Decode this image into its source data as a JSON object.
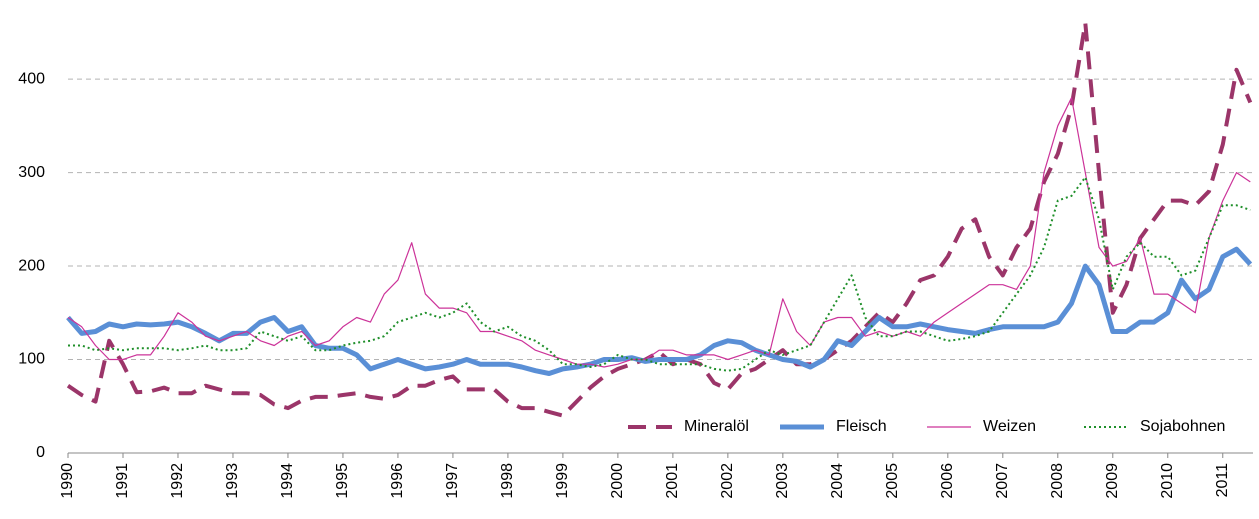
{
  "chart_data": {
    "type": "line",
    "x_start": 1990,
    "x_step": 0.25,
    "xlim": [
      1990,
      2011.55
    ],
    "xticks": [
      1990,
      1991,
      1992,
      1993,
      1994,
      1995,
      1996,
      1997,
      1998,
      1999,
      2000,
      2001,
      2002,
      2003,
      2004,
      2005,
      2006,
      2007,
      2008,
      2009,
      2010,
      2011
    ],
    "ylim": [
      0,
      475
    ],
    "yticks": [
      0,
      100,
      200,
      300,
      400
    ],
    "grid": true,
    "legend": "lower right",
    "series": [
      {
        "name": "Mineralöl",
        "color": "#9b3569",
        "style": "dashed",
        "width": 4,
        "values": [
          72,
          62,
          55,
          120,
          95,
          65,
          66,
          70,
          64,
          64,
          72,
          68,
          64,
          64,
          62,
          52,
          48,
          56,
          60,
          60,
          62,
          64,
          60,
          58,
          62,
          72,
          72,
          78,
          82,
          68,
          68,
          68,
          55,
          48,
          48,
          44,
          40,
          55,
          70,
          82,
          90,
          95,
          100,
          108,
          95,
          100,
          95,
          75,
          68,
          85,
          90,
          100,
          110,
          95,
          95,
          100,
          110,
          120,
          135,
          150,
          140,
          160,
          185,
          190,
          210,
          240,
          250,
          210,
          190,
          220,
          240,
          290,
          320,
          370,
          460,
          300,
          150,
          180,
          230,
          250,
          270,
          270,
          265,
          280,
          330,
          410,
          375
        ]
      },
      {
        "name": "Fleisch",
        "color": "#5a8fd6",
        "style": "solid",
        "width": 5,
        "values": [
          145,
          128,
          130,
          138,
          135,
          138,
          137,
          138,
          140,
          135,
          128,
          120,
          128,
          128,
          140,
          145,
          130,
          135,
          115,
          112,
          112,
          105,
          90,
          95,
          100,
          95,
          90,
          92,
          95,
          100,
          95,
          95,
          95,
          92,
          88,
          85,
          90,
          92,
          95,
          100,
          100,
          102,
          98,
          100,
          100,
          100,
          105,
          115,
          120,
          118,
          110,
          105,
          100,
          98,
          92,
          100,
          120,
          115,
          130,
          145,
          135,
          135,
          138,
          135,
          132,
          130,
          128,
          132,
          135,
          135,
          135,
          135,
          140,
          160,
          200,
          180,
          130,
          130,
          140,
          140,
          150,
          185,
          165,
          175,
          210,
          218,
          202
        ]
      },
      {
        "name": "Weizen",
        "color": "#cc3399",
        "style": "solid",
        "width": 1.2,
        "values": [
          145,
          135,
          115,
          100,
          100,
          105,
          105,
          125,
          150,
          140,
          125,
          120,
          125,
          130,
          120,
          115,
          125,
          130,
          115,
          120,
          135,
          145,
          140,
          170,
          185,
          225,
          170,
          155,
          155,
          150,
          130,
          130,
          125,
          120,
          110,
          105,
          100,
          95,
          95,
          92,
          95,
          100,
          100,
          110,
          110,
          105,
          105,
          105,
          100,
          105,
          110,
          105,
          165,
          130,
          115,
          140,
          145,
          145,
          125,
          130,
          125,
          130,
          125,
          140,
          150,
          160,
          170,
          180,
          180,
          175,
          200,
          300,
          350,
          380,
          300,
          220,
          200,
          205,
          230,
          170,
          170,
          160,
          150,
          230,
          270,
          300,
          290
        ]
      },
      {
        "name": "Sojabohnen",
        "color": "#1f8f2a",
        "style": "dotted",
        "width": 2,
        "values": [
          115,
          115,
          110,
          112,
          110,
          112,
          112,
          112,
          110,
          112,
          115,
          110,
          110,
          112,
          130,
          125,
          120,
          125,
          110,
          110,
          115,
          118,
          120,
          125,
          140,
          145,
          150,
          145,
          150,
          160,
          140,
          130,
          135,
          125,
          120,
          110,
          95,
          95,
          92,
          95,
          105,
          100,
          100,
          95,
          95,
          95,
          95,
          90,
          88,
          90,
          100,
          110,
          105,
          110,
          115,
          140,
          165,
          190,
          145,
          125,
          125,
          130,
          130,
          125,
          120,
          122,
          125,
          130,
          150,
          170,
          190,
          220,
          270,
          275,
          295,
          250,
          175,
          210,
          225,
          210,
          210,
          190,
          195,
          230,
          265,
          265,
          260
        ]
      }
    ]
  }
}
